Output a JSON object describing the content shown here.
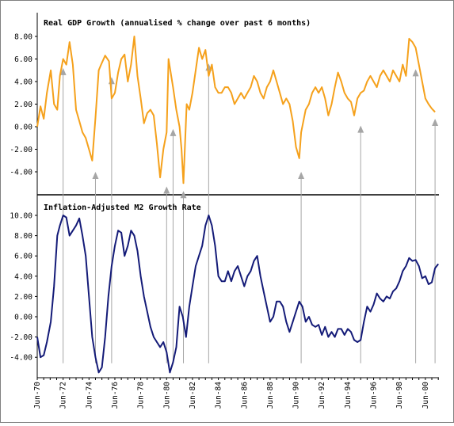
{
  "colors": {
    "gdp_line": "#f5a11c",
    "m2_line": "#141b78",
    "arrow": "#a6a6a6",
    "divider": "#000000",
    "frame": "#808080"
  },
  "chart_data": [
    {
      "type": "line",
      "title": "Real GDP Growth (annualised % change over past 6 months)",
      "xlabel": "",
      "ylabel": "",
      "ylim": [
        -6,
        9
      ],
      "yticks": [
        -4,
        -2,
        0,
        2,
        4,
        6,
        8
      ],
      "ytick_labels": [
        "-4.00",
        "-2.00",
        "0.00",
        "2.00",
        "4.00",
        "6.00",
        "8.00"
      ],
      "grid": false,
      "series": [
        {
          "x": [
            1970.45,
            1970.7,
            1970.95,
            1971.2,
            1971.5,
            1971.75,
            1972.0,
            1972.2,
            1972.45,
            1972.7,
            1972.95,
            1973.2,
            1973.45,
            1973.7,
            1973.95,
            1974.2,
            1974.45,
            1974.7,
            1974.95,
            1975.2,
            1975.35,
            1975.7,
            1976.0,
            1976.2,
            1976.45,
            1976.7,
            1976.95,
            1977.2,
            1977.45,
            1977.7,
            1977.95,
            1978.2,
            1978.45,
            1978.7,
            1978.95,
            1979.2,
            1979.45,
            1979.7,
            1979.95,
            1980.2,
            1980.45,
            1980.6,
            1980.95,
            1981.2,
            1981.45,
            1981.6,
            1981.75,
            1982.0,
            1982.2,
            1982.45,
            1982.7,
            1982.95,
            1983.2,
            1983.45,
            1983.7,
            1983.95,
            1984.2,
            1984.45,
            1984.7,
            1984.95,
            1985.2,
            1985.45,
            1985.7,
            1985.95,
            1986.2,
            1986.45,
            1986.7,
            1986.95,
            1987.2,
            1987.45,
            1987.7,
            1987.95,
            1988.2,
            1988.45,
            1988.7,
            1988.95,
            1989.2,
            1989.45,
            1989.7,
            1989.95,
            1990.2,
            1990.45,
            1990.7,
            1990.85,
            1991.2,
            1991.45,
            1991.7,
            1991.95,
            1992.2,
            1992.45,
            1992.7,
            1992.95,
            1993.2,
            1993.45,
            1993.7,
            1993.95,
            1994.2,
            1994.45,
            1994.7,
            1994.95,
            1995.2,
            1995.45,
            1995.7,
            1995.95,
            1996.2,
            1996.45,
            1996.7,
            1996.95,
            1997.2,
            1997.45,
            1997.7,
            1997.95,
            1998.2,
            1998.45,
            1998.7,
            1998.95,
            1999.2,
            1999.45,
            1999.7,
            1999.95,
            2000.2,
            2000.45,
            2000.7,
            2000.95,
            2001.2
          ],
          "y": [
            0.0,
            1.8,
            0.7,
            3.0,
            5.0,
            2.0,
            1.5,
            4.5,
            6.0,
            5.5,
            7.5,
            5.5,
            1.5,
            0.5,
            -0.5,
            -1.0,
            -2.0,
            -3.0,
            0.8,
            5.0,
            5.4,
            6.3,
            5.8,
            2.5,
            3.0,
            4.8,
            6.0,
            6.4,
            4.0,
            5.5,
            8.0,
            4.5,
            2.5,
            0.3,
            1.2,
            1.5,
            1.0,
            -1.5,
            -4.5,
            -2.0,
            -0.5,
            6.0,
            3.5,
            1.5,
            0.0,
            -2.0,
            -5.0,
            2.0,
            1.5,
            3.0,
            5.0,
            7.0,
            6.0,
            6.8,
            4.5,
            5.5,
            3.5,
            3.0,
            3.0,
            3.5,
            3.5,
            3.0,
            2.0,
            2.5,
            3.0,
            2.5,
            3.0,
            3.5,
            4.5,
            4.0,
            3.0,
            2.5,
            3.5,
            4.0,
            5.0,
            4.0,
            3.0,
            2.0,
            2.5,
            2.0,
            0.5,
            -1.8,
            -2.8,
            -0.5,
            1.5,
            2.0,
            3.0,
            3.5,
            3.0,
            3.5,
            2.5,
            1.0,
            2.0,
            3.5,
            4.8,
            4.0,
            3.0,
            2.5,
            2.2,
            1.0,
            2.5,
            3.0,
            3.2,
            4.0,
            4.5,
            4.0,
            3.5,
            4.5,
            5.0,
            4.5,
            4.0,
            5.0,
            4.5,
            4.0,
            5.5,
            4.5,
            7.8,
            7.5,
            7.0,
            5.5,
            4.0,
            2.5,
            2.0,
            1.6,
            1.3
          ]
        }
      ]
    },
    {
      "type": "line",
      "title": "Inflation-Adjusted M2 Growth Rate",
      "xlabel": "",
      "ylabel": "",
      "ylim": [
        -6,
        11
      ],
      "yticks": [
        -4,
        -2,
        0,
        2,
        4,
        6,
        8,
        10
      ],
      "ytick_labels": [
        "-4.00",
        "-2.00",
        "0.00",
        "2.00",
        "4.00",
        "6.00",
        "8.00",
        "10.00"
      ],
      "x_tick_labels": [
        "Jun-70",
        "Jun-72",
        "Jun-74",
        "Jun-76",
        "Jun-78",
        "Jun-80",
        "Jun-82",
        "Jun-84",
        "Jun-86",
        "Jun-88",
        "Jun-90",
        "Jun-92",
        "Jun-94",
        "Jun-96",
        "Jun-98",
        "Jun-00"
      ],
      "grid": false,
      "series": [
        {
          "x": [
            1970.45,
            1970.7,
            1970.95,
            1971.2,
            1971.5,
            1971.75,
            1972.0,
            1972.2,
            1972.45,
            1972.7,
            1972.95,
            1973.2,
            1973.45,
            1973.7,
            1973.95,
            1974.2,
            1974.45,
            1974.7,
            1974.95,
            1975.2,
            1975.45,
            1975.7,
            1975.95,
            1976.2,
            1976.45,
            1976.7,
            1976.95,
            1977.2,
            1977.45,
            1977.7,
            1977.95,
            1978.2,
            1978.45,
            1978.7,
            1978.95,
            1979.2,
            1979.45,
            1979.7,
            1979.95,
            1980.2,
            1980.45,
            1980.7,
            1980.95,
            1981.2,
            1981.45,
            1981.7,
            1981.95,
            1982.2,
            1982.45,
            1982.7,
            1982.95,
            1983.2,
            1983.45,
            1983.7,
            1983.95,
            1984.2,
            1984.45,
            1984.7,
            1984.95,
            1985.2,
            1985.45,
            1985.7,
            1985.95,
            1986.2,
            1986.45,
            1986.7,
            1986.95,
            1987.2,
            1987.45,
            1987.7,
            1987.95,
            1988.2,
            1988.45,
            1988.7,
            1988.95,
            1989.2,
            1989.45,
            1989.7,
            1989.95,
            1990.2,
            1990.45,
            1990.7,
            1990.95,
            1991.2,
            1991.45,
            1991.7,
            1991.95,
            1992.2,
            1992.45,
            1992.7,
            1992.95,
            1993.2,
            1993.45,
            1993.7,
            1993.95,
            1994.2,
            1994.45,
            1994.7,
            1994.95,
            1995.2,
            1995.45,
            1995.7,
            1995.95,
            1996.2,
            1996.45,
            1996.7,
            1996.95,
            1997.2,
            1997.45,
            1997.7,
            1997.95,
            1998.2,
            1998.45,
            1998.7,
            1998.95,
            1999.2,
            1999.45,
            1999.7,
            1999.95,
            2000.2,
            2000.45,
            2000.7,
            2000.95,
            2001.2,
            2001.45
          ],
          "y": [
            -2.0,
            -4.0,
            -3.8,
            -2.5,
            -0.5,
            3.0,
            8.0,
            9.0,
            10.0,
            9.8,
            8.0,
            8.5,
            9.0,
            9.7,
            8.0,
            6.0,
            2.0,
            -2.0,
            -4.0,
            -5.5,
            -5.0,
            -2.0,
            2.0,
            5.0,
            7.0,
            8.5,
            8.3,
            6.0,
            7.0,
            8.5,
            8.0,
            6.5,
            4.0,
            2.0,
            0.5,
            -1.0,
            -2.0,
            -2.5,
            -3.0,
            -2.5,
            -3.5,
            -5.5,
            -4.5,
            -3.0,
            1.0,
            0.0,
            -2.0,
            1.0,
            3.0,
            5.0,
            6.0,
            7.0,
            9.0,
            10.0,
            9.0,
            7.0,
            4.0,
            3.5,
            3.5,
            4.5,
            3.5,
            4.5,
            5.0,
            4.0,
            3.0,
            4.0,
            4.5,
            5.5,
            6.0,
            4.0,
            2.5,
            1.0,
            -0.5,
            0.0,
            1.5,
            1.5,
            1.0,
            -0.5,
            -1.5,
            -0.5,
            0.5,
            1.5,
            1.0,
            -0.5,
            0.0,
            -0.8,
            -1.0,
            -0.8,
            -1.8,
            -1.0,
            -2.0,
            -1.5,
            -2.0,
            -1.2,
            -1.2,
            -1.8,
            -1.2,
            -1.5,
            -2.3,
            -2.5,
            -2.3,
            -0.5,
            1.0,
            0.5,
            1.2,
            2.3,
            1.8,
            1.5,
            2.0,
            1.8,
            2.5,
            2.8,
            3.5,
            4.5,
            5.0,
            5.8,
            5.5,
            5.6,
            5.0,
            3.8,
            4.0,
            3.2,
            3.4,
            4.8,
            5.2
          ]
        }
      ]
    }
  ],
  "arrows": [
    {
      "x": 1972.45,
      "from_y": -6,
      "to_y": 5.2
    },
    {
      "x": 1974.95,
      "from_y": -6,
      "to_y": -4.0
    },
    {
      "x": 1976.2,
      "from_y": -6,
      "to_y": 4.4
    },
    {
      "x": 1980.45,
      "from_y": -6,
      "to_y": -5.3
    },
    {
      "x": 1980.95,
      "from_y": -6,
      "to_y": -0.2
    },
    {
      "x": 1981.75,
      "from_y": -6,
      "to_y": -5.7
    },
    {
      "x": 1983.7,
      "from_y": -6,
      "to_y": 5.6
    },
    {
      "x": 1990.85,
      "from_y": -6,
      "to_y": -4.0
    },
    {
      "x": 1995.45,
      "from_y": -6,
      "to_y": 0.1
    },
    {
      "x": 1999.7,
      "from_y": -6,
      "to_y": 5.1
    },
    {
      "x": 2001.2,
      "from_y": -6,
      "to_y": 0.7
    }
  ]
}
